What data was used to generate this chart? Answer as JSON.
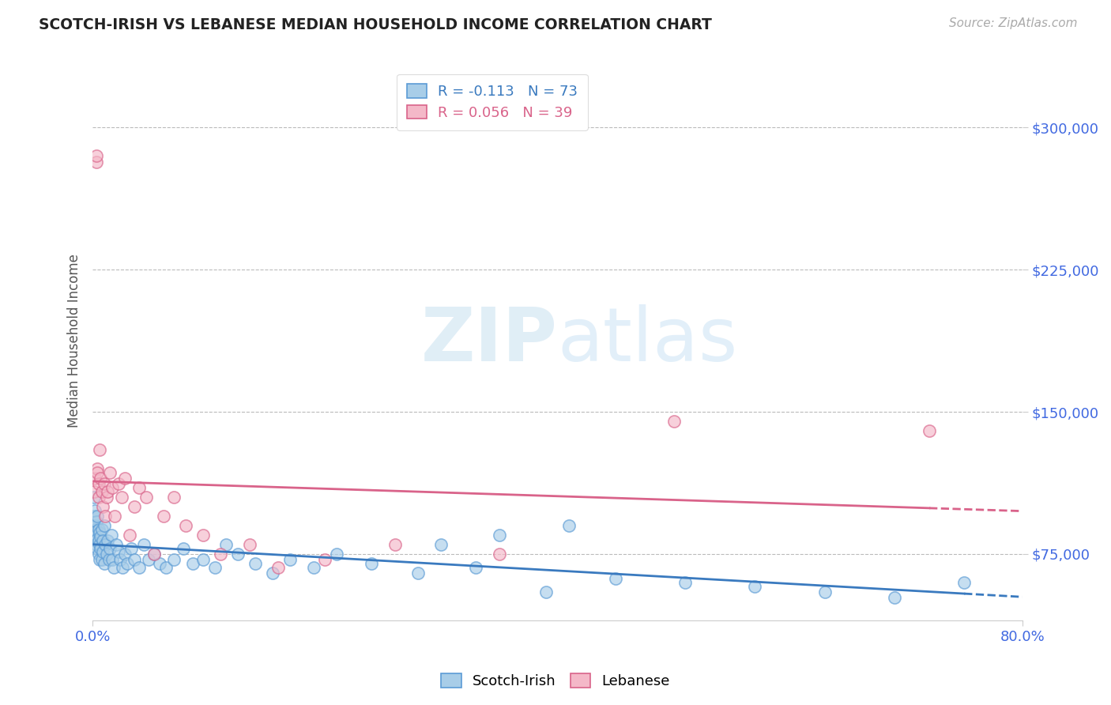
{
  "title": "SCOTCH-IRISH VS LEBANESE MEDIAN HOUSEHOLD INCOME CORRELATION CHART",
  "source": "Source: ZipAtlas.com",
  "ylabel": "Median Household Income",
  "xlim": [
    0.0,
    0.8
  ],
  "ylim": [
    40000,
    335000
  ],
  "yticks": [
    75000,
    150000,
    225000,
    300000
  ],
  "ytick_labels": [
    "$75,000",
    "$150,000",
    "$225,000",
    "$300,000"
  ],
  "xtick_labels": [
    "0.0%",
    "80.0%"
  ],
  "legend_scotch_irish": "Scotch-Irish",
  "legend_lebanese": "Lebanese",
  "r_scotch": -0.113,
  "n_scotch": 73,
  "r_lebanese": 0.056,
  "n_lebanese": 39,
  "color_scotch": "#a8cde8",
  "color_scotch_edge": "#5b9bd5",
  "color_lebanese": "#f4b8c8",
  "color_lebanese_edge": "#d9638a",
  "color_scotch_line": "#3a7abf",
  "color_lebanese_line": "#d9638a",
  "watermark_color": "#c8e0f0",
  "background_color": "#ffffff",
  "title_color": "#222222",
  "ytick_color": "#4169e1",
  "xtick_color": "#4169e1",
  "grid_color": "#bbbbbb",
  "scotch_irish_x": [
    0.001,
    0.001,
    0.002,
    0.002,
    0.002,
    0.003,
    0.003,
    0.003,
    0.003,
    0.004,
    0.004,
    0.004,
    0.005,
    0.005,
    0.005,
    0.006,
    0.006,
    0.006,
    0.007,
    0.007,
    0.008,
    0.008,
    0.009,
    0.009,
    0.01,
    0.01,
    0.011,
    0.012,
    0.013,
    0.014,
    0.015,
    0.016,
    0.017,
    0.018,
    0.02,
    0.022,
    0.024,
    0.026,
    0.028,
    0.03,
    0.033,
    0.036,
    0.04,
    0.044,
    0.048,
    0.053,
    0.058,
    0.063,
    0.07,
    0.078,
    0.086,
    0.095,
    0.105,
    0.115,
    0.125,
    0.14,
    0.155,
    0.17,
    0.19,
    0.21,
    0.24,
    0.28,
    0.33,
    0.39,
    0.45,
    0.51,
    0.57,
    0.63,
    0.69,
    0.75,
    0.3,
    0.35,
    0.41
  ],
  "scotch_irish_y": [
    105000,
    95000,
    98000,
    90000,
    88000,
    92000,
    85000,
    80000,
    87000,
    83000,
    95000,
    78000,
    88000,
    82000,
    75000,
    86000,
    80000,
    72000,
    84000,
    78000,
    88000,
    72000,
    82000,
    76000,
    90000,
    70000,
    80000,
    75000,
    82000,
    72000,
    78000,
    85000,
    72000,
    68000,
    80000,
    76000,
    72000,
    68000,
    75000,
    70000,
    78000,
    72000,
    68000,
    80000,
    72000,
    75000,
    70000,
    68000,
    72000,
    78000,
    70000,
    72000,
    68000,
    80000,
    75000,
    70000,
    65000,
    72000,
    68000,
    75000,
    70000,
    65000,
    68000,
    55000,
    62000,
    60000,
    58000,
    55000,
    52000,
    60000,
    80000,
    85000,
    90000
  ],
  "lebanese_x": [
    0.001,
    0.002,
    0.003,
    0.003,
    0.004,
    0.004,
    0.005,
    0.005,
    0.006,
    0.007,
    0.008,
    0.009,
    0.01,
    0.011,
    0.012,
    0.013,
    0.015,
    0.017,
    0.019,
    0.022,
    0.025,
    0.028,
    0.032,
    0.036,
    0.04,
    0.046,
    0.053,
    0.061,
    0.07,
    0.08,
    0.095,
    0.11,
    0.135,
    0.16,
    0.2,
    0.26,
    0.35,
    0.5,
    0.72
  ],
  "lebanese_y": [
    108000,
    115000,
    282000,
    285000,
    120000,
    118000,
    112000,
    105000,
    130000,
    115000,
    108000,
    100000,
    112000,
    95000,
    105000,
    108000,
    118000,
    110000,
    95000,
    112000,
    105000,
    115000,
    85000,
    100000,
    110000,
    105000,
    75000,
    95000,
    105000,
    90000,
    85000,
    75000,
    80000,
    68000,
    72000,
    80000,
    75000,
    145000,
    140000
  ]
}
